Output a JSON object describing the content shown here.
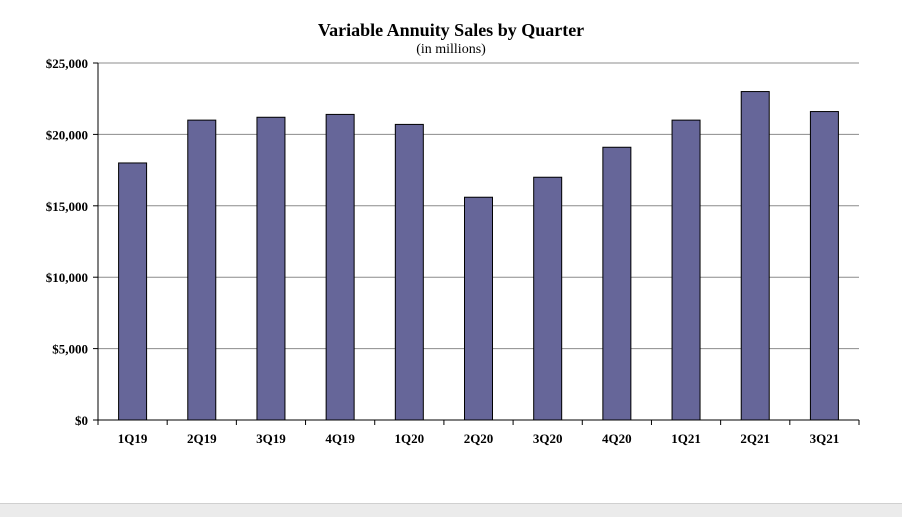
{
  "chart_data": {
    "type": "bar",
    "title": "Variable Annuity Sales by Quarter",
    "subtitle": "(in millions)",
    "xlabel": "",
    "ylabel": "",
    "categories": [
      "1Q19",
      "2Q19",
      "3Q19",
      "4Q19",
      "1Q20",
      "2Q20",
      "3Q20",
      "4Q20",
      "1Q21",
      "2Q21",
      "3Q21"
    ],
    "values": [
      18000,
      21000,
      21200,
      21400,
      20700,
      15600,
      17000,
      19100,
      21000,
      23000,
      21600
    ],
    "ylim": [
      0,
      25000
    ],
    "yticks": [
      0,
      5000,
      10000,
      15000,
      20000,
      25000
    ],
    "ytick_labels": [
      "$0",
      "$5,000",
      "$10,000",
      "$15,000",
      "$20,000",
      "$25,000"
    ],
    "grid": true,
    "legend": "none",
    "bar_color": "#666699",
    "bar_stroke": "#000000"
  }
}
